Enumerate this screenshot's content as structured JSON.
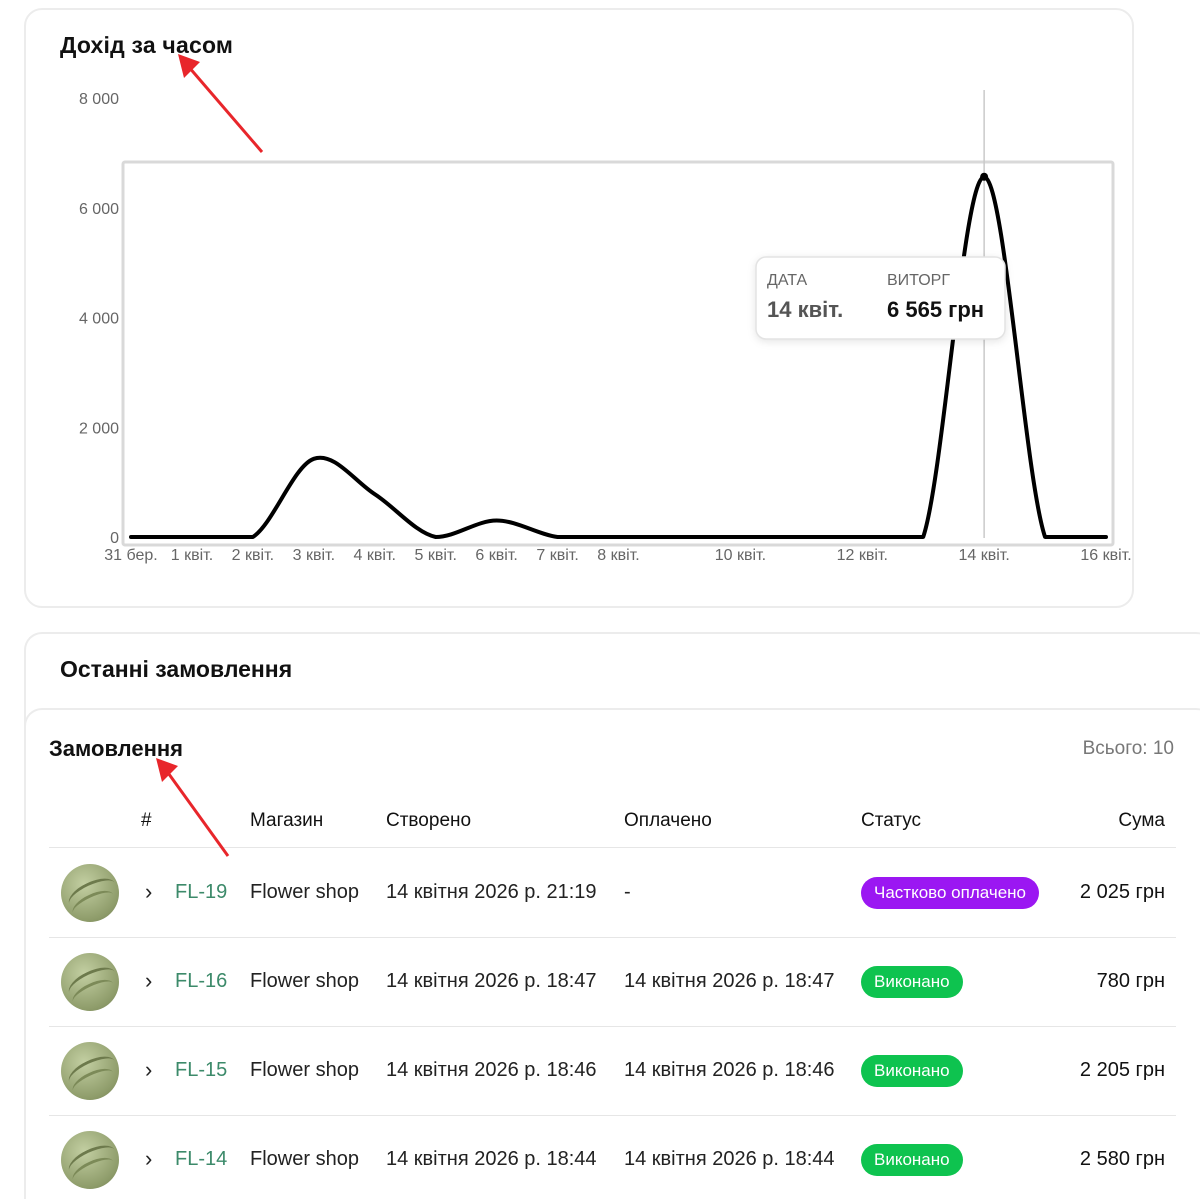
{
  "chart_card": {
    "title": "Дохід за часом"
  },
  "chart_data": {
    "type": "line",
    "title": "Дохід за часом",
    "y_ticks": [
      "8 000",
      "6 000",
      "4 000",
      "2 000",
      "0"
    ],
    "ylim": [
      0,
      8000
    ],
    "x_ticks": [
      "31 бер.",
      "1 квіт.",
      "2 квіт.",
      "3 квіт.",
      "4 квіт.",
      "5 квіт.",
      "6 квіт.",
      "7 квіт.",
      "8 квіт.",
      "10 квіт.",
      "12 квіт.",
      "14 квіт.",
      "16 квіт."
    ],
    "x": [
      "31 бер.",
      "1 квіт.",
      "2 квіт.",
      "3 квіт.",
      "4 квіт.",
      "5 квіт.",
      "6 квіт.",
      "7 квіт.",
      "8 квіт.",
      "9 квіт.",
      "10 квіт.",
      "11 квіт.",
      "12 квіт.",
      "13 квіт.",
      "14 квіт.",
      "15 квіт.",
      "16 квіт."
    ],
    "values": [
      0,
      0,
      0,
      1425,
      780,
      0,
      300,
      0,
      0,
      0,
      0,
      0,
      0,
      0,
      6565,
      0,
      0
    ],
    "grid": false,
    "tooltip": {
      "date_label": "ДАТА",
      "date_value": "14 квіт.",
      "revenue_label": "ВИТОРГ",
      "revenue_value": "6 565 грн"
    }
  },
  "recent_card": {
    "title": "Останні замовлення"
  },
  "orders": {
    "title": "Замовлення",
    "total": "Всього: 10",
    "columns": {
      "num": "#",
      "shop": "Магазин",
      "created": "Створено",
      "paid": "Оплачено",
      "status": "Статус",
      "amount": "Сума"
    },
    "rows": [
      {
        "id": "FL-19",
        "shop": "Flower shop",
        "created": "14 квітня 2026 р. 21:19",
        "paid": "-",
        "status": "Частково оплачено",
        "status_color": "#9b17f2",
        "amount": "2 025 грн"
      },
      {
        "id": "FL-16",
        "shop": "Flower shop",
        "created": "14 квітня 2026 р. 18:47",
        "paid": "14 квітня 2026 р. 18:47",
        "status": "Виконано",
        "status_color": "#0ec34f",
        "amount": "780 грн"
      },
      {
        "id": "FL-15",
        "shop": "Flower shop",
        "created": "14 квітня 2026 р. 18:46",
        "paid": "14 квітня 2026 р. 18:46",
        "status": "Виконано",
        "status_color": "#0ec34f",
        "amount": "2 205 грн"
      },
      {
        "id": "FL-14",
        "shop": "Flower shop",
        "created": "14 квітня 2026 р. 18:44",
        "paid": "14 квітня 2026 р. 18:44",
        "status": "Виконано",
        "status_color": "#0ec34f",
        "amount": "2 580 грн"
      }
    ]
  }
}
